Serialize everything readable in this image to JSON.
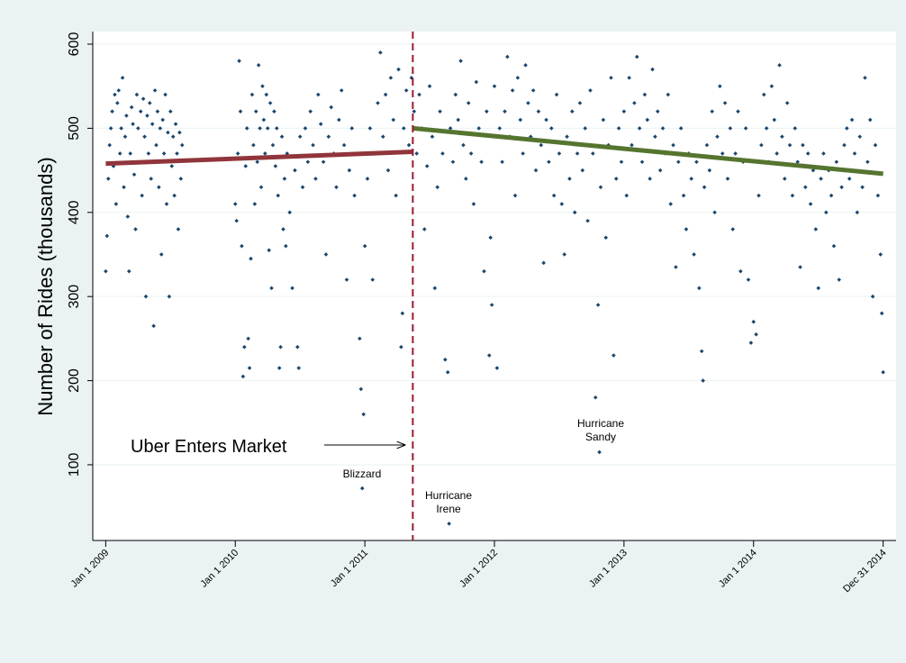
{
  "chart_data": {
    "type": "scatter",
    "y_label": "Number of Rides (thousands)",
    "xlim": [
      2008.9,
      2015.1
    ],
    "ylim": [
      10,
      615
    ],
    "yticks": [
      100,
      200,
      300,
      400,
      500,
      600
    ],
    "xticks": [
      {
        "value": 2009,
        "label": "Jan 1 2009"
      },
      {
        "value": 2010,
        "label": "Jan 1 2010"
      },
      {
        "value": 2011,
        "label": "Jan 1 2011"
      },
      {
        "value": 2012,
        "label": "Jan 1 2012"
      },
      {
        "value": 2013,
        "label": "Jan 1 2013"
      },
      {
        "value": 2014,
        "label": "Jan 1 2014"
      },
      {
        "value": 2015,
        "label": "Dec 31 2014"
      }
    ],
    "grid": true,
    "series": [
      {
        "kind": "points",
        "color": "#1a476f",
        "x": [
          2009.0,
          2009.01,
          2009.02,
          2009.03,
          2009.04,
          2009.05,
          2009.06,
          2009.07,
          2009.08,
          2009.09,
          2009.1,
          2009.11,
          2009.12,
          2009.13,
          2009.14,
          2009.15,
          2009.16,
          2009.17,
          2009.18,
          2009.19,
          2009.2,
          2009.21,
          2009.22,
          2009.23,
          2009.24,
          2009.25,
          2009.26,
          2009.27,
          2009.28,
          2009.29,
          2009.3,
          2009.31,
          2009.32,
          2009.33,
          2009.34,
          2009.35,
          2009.36,
          2009.37,
          2009.38,
          2009.39,
          2009.4,
          2009.41,
          2009.42,
          2009.43,
          2009.44,
          2009.45,
          2009.46,
          2009.47,
          2009.48,
          2009.49,
          2009.5,
          2009.51,
          2009.52,
          2009.53,
          2009.54,
          2009.55,
          2009.56,
          2009.57,
          2009.58,
          2009.59,
          2010.0,
          2010.01,
          2010.02,
          2010.03,
          2010.04,
          2010.05,
          2010.06,
          2010.07,
          2010.08,
          2010.09,
          2010.1,
          2010.11,
          2010.12,
          2010.13,
          2010.14,
          2010.15,
          2010.16,
          2010.17,
          2010.18,
          2010.19,
          2010.2,
          2010.21,
          2010.22,
          2010.23,
          2010.24,
          2010.25,
          2010.26,
          2010.27,
          2010.28,
          2010.29,
          2010.3,
          2010.31,
          2010.32,
          2010.33,
          2010.34,
          2010.35,
          2010.36,
          2010.37,
          2010.38,
          2010.39,
          2010.4,
          2010.42,
          2010.44,
          2010.46,
          2010.48,
          2010.49,
          2010.5,
          2010.52,
          2010.54,
          2010.56,
          2010.58,
          2010.6,
          2010.62,
          2010.64,
          2010.66,
          2010.68,
          2010.7,
          2010.72,
          2010.74,
          2010.76,
          2010.78,
          2010.8,
          2010.82,
          2010.84,
          2010.86,
          2010.88,
          2010.9,
          2010.92,
          2010.94,
          2010.96,
          2010.97,
          2010.98,
          2010.99,
          2011.0,
          2011.02,
          2011.04,
          2011.06,
          2011.08,
          2011.1,
          2011.12,
          2011.14,
          2011.16,
          2011.18,
          2011.2,
          2011.22,
          2011.24,
          2011.26,
          2011.28,
          2011.29,
          2011.3,
          2011.32,
          2011.34,
          2011.36,
          2011.38,
          2011.4,
          2011.42,
          2011.44,
          2011.46,
          2011.48,
          2011.5,
          2011.52,
          2011.54,
          2011.56,
          2011.58,
          2011.6,
          2011.62,
          2011.64,
          2011.65,
          2011.66,
          2011.68,
          2011.7,
          2011.72,
          2011.74,
          2011.76,
          2011.78,
          2011.8,
          2011.82,
          2011.84,
          2011.86,
          2011.88,
          2011.9,
          2011.92,
          2011.94,
          2011.96,
          2011.97,
          2011.98,
          2012.0,
          2012.02,
          2012.04,
          2012.06,
          2012.08,
          2012.1,
          2012.12,
          2012.14,
          2012.16,
          2012.18,
          2012.2,
          2012.22,
          2012.24,
          2012.26,
          2012.28,
          2012.3,
          2012.32,
          2012.34,
          2012.36,
          2012.38,
          2012.4,
          2012.42,
          2012.44,
          2012.46,
          2012.48,
          2012.5,
          2012.52,
          2012.54,
          2012.56,
          2012.58,
          2012.6,
          2012.62,
          2012.64,
          2012.66,
          2012.68,
          2012.7,
          2012.72,
          2012.74,
          2012.76,
          2012.78,
          2012.8,
          2012.81,
          2012.82,
          2012.84,
          2012.86,
          2012.88,
          2012.9,
          2012.92,
          2012.94,
          2012.96,
          2012.98,
          2013.0,
          2013.02,
          2013.04,
          2013.06,
          2013.08,
          2013.1,
          2013.12,
          2013.14,
          2013.16,
          2013.18,
          2013.2,
          2013.22,
          2013.24,
          2013.26,
          2013.28,
          2013.3,
          2013.32,
          2013.34,
          2013.36,
          2013.38,
          2013.4,
          2013.42,
          2013.44,
          2013.46,
          2013.48,
          2013.5,
          2013.52,
          2013.54,
          2013.56,
          2013.58,
          2013.6,
          2013.61,
          2013.62,
          2013.64,
          2013.66,
          2013.68,
          2013.7,
          2013.72,
          2013.74,
          2013.76,
          2013.78,
          2013.8,
          2013.82,
          2013.84,
          2013.86,
          2013.88,
          2013.9,
          2013.92,
          2013.94,
          2013.96,
          2013.98,
          2014.0,
          2014.02,
          2014.04,
          2014.06,
          2014.08,
          2014.1,
          2014.12,
          2014.14,
          2014.16,
          2014.18,
          2014.2,
          2014.22,
          2014.24,
          2014.26,
          2014.28,
          2014.3,
          2014.32,
          2014.34,
          2014.36,
          2014.38,
          2014.4,
          2014.42,
          2014.44,
          2014.46,
          2014.48,
          2014.5,
          2014.52,
          2014.54,
          2014.56,
          2014.58,
          2014.6,
          2014.62,
          2014.64,
          2014.66,
          2014.68,
          2014.7,
          2014.72,
          2014.74,
          2014.76,
          2014.78,
          2014.8,
          2014.82,
          2014.84,
          2014.86,
          2014.88,
          2014.9,
          2014.92,
          2014.94,
          2014.96,
          2014.98,
          2014.99,
          2015.0
        ],
        "values": [
          330,
          372,
          440,
          480,
          500,
          520,
          455,
          540,
          410,
          530,
          545,
          470,
          500,
          560,
          430,
          490,
          515,
          395,
          330,
          470,
          525,
          505,
          445,
          380,
          540,
          500,
          460,
          520,
          420,
          535,
          490,
          300,
          515,
          470,
          530,
          440,
          505,
          265,
          545,
          480,
          520,
          430,
          500,
          350,
          510,
          470,
          540,
          410,
          495,
          300,
          520,
          455,
          490,
          420,
          505,
          470,
          380,
          495,
          440,
          480,
          410,
          390,
          470,
          580,
          520,
          360,
          205,
          240,
          455,
          500,
          250,
          215,
          345,
          540,
          480,
          410,
          520,
          460,
          575,
          500,
          430,
          550,
          510,
          470,
          540,
          500,
          355,
          530,
          310,
          480,
          520,
          455,
          500,
          420,
          215,
          240,
          490,
          380,
          440,
          360,
          470,
          400,
          310,
          450,
          240,
          215,
          490,
          430,
          500,
          460,
          520,
          480,
          440,
          540,
          505,
          460,
          350,
          490,
          525,
          470,
          430,
          510,
          545,
          480,
          320,
          450,
          500,
          420,
          470,
          250,
          190,
          72,
          160,
          360,
          440,
          500,
          320,
          470,
          530,
          590,
          490,
          540,
          450,
          560,
          510,
          420,
          570,
          240,
          280,
          500,
          545,
          480,
          560,
          520,
          470,
          540,
          500,
          380,
          455,
          550,
          490,
          310,
          430,
          520,
          470,
          225,
          210,
          30,
          500,
          460,
          540,
          510,
          580,
          480,
          440,
          530,
          470,
          410,
          555,
          500,
          460,
          330,
          520,
          230,
          370,
          290,
          550,
          215,
          500,
          460,
          520,
          585,
          490,
          545,
          420,
          560,
          510,
          470,
          575,
          530,
          490,
          545,
          450,
          520,
          480,
          340,
          510,
          460,
          500,
          420,
          540,
          470,
          410,
          350,
          490,
          440,
          520,
          400,
          470,
          530,
          450,
          500,
          390,
          545,
          470,
          180,
          290,
          115,
          430,
          510,
          370,
          480,
          560,
          230,
          440,
          500,
          460,
          520,
          420,
          560,
          480,
          530,
          585,
          500,
          460,
          540,
          510,
          440,
          570,
          490,
          520,
          450,
          500,
          470,
          540,
          410,
          480,
          335,
          460,
          500,
          420,
          380,
          470,
          440,
          350,
          460,
          310,
          235,
          200,
          430,
          480,
          450,
          520,
          400,
          490,
          550,
          470,
          530,
          440,
          500,
          380,
          470,
          520,
          330,
          460,
          500,
          320,
          245,
          270,
          255,
          420,
          480,
          540,
          500,
          460,
          550,
          510,
          470,
          575,
          490,
          440,
          530,
          480,
          420,
          500,
          460,
          335,
          480,
          430,
          470,
          410,
          450,
          380,
          310,
          440,
          470,
          400,
          450,
          420,
          360,
          460,
          320,
          430,
          480,
          500,
          440,
          510,
          470,
          400,
          490,
          430,
          560,
          460,
          510,
          300,
          480,
          420,
          350,
          280,
          210
        ]
      },
      {
        "kind": "line",
        "color": "#90353b",
        "x": [
          2009.0,
          2011.37
        ],
        "values": [
          458,
          472
        ]
      },
      {
        "kind": "line",
        "color": "#55752f",
        "x": [
          2011.37,
          2015.0
        ],
        "values": [
          500,
          446
        ]
      }
    ],
    "event": {
      "text": "Uber Enters Market",
      "x": 2011.37,
      "color": "#9b1b30"
    },
    "annotations": [
      {
        "text": [
          "Blizzard"
        ]
      },
      {
        "text": [
          "Hurricane",
          "Irene"
        ]
      },
      {
        "text": [
          "Hurricane",
          "Sandy"
        ]
      }
    ]
  }
}
